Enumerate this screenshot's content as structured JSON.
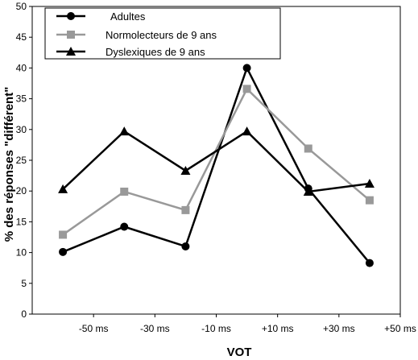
{
  "chart_data": {
    "type": "line",
    "title": "",
    "xlabel": "VOT",
    "ylabel": "% des réponses \"différent\"",
    "x_tick_labels": [
      "-50 ms",
      "-30 ms",
      "-10 ms",
      "+10 ms",
      "+30 ms",
      "+50 ms"
    ],
    "x_ticks": [
      -50,
      -30,
      -10,
      10,
      30,
      50
    ],
    "x": [
      -60,
      -40,
      -20,
      0,
      20,
      40
    ],
    "xlim": [
      -70,
      50
    ],
    "ylim": [
      0,
      50
    ],
    "y_ticks": [
      0,
      5,
      10,
      15,
      20,
      25,
      30,
      35,
      40,
      45,
      50
    ],
    "grid": false,
    "legend_position": "top-left",
    "series": [
      {
        "name": "Adultes",
        "values": [
          10.1,
          14.2,
          11.0,
          40.0,
          20.4,
          8.3
        ],
        "color": "#000000",
        "marker": "circle"
      },
      {
        "name": "Normolecteurs de 9 ans",
        "values": [
          12.9,
          19.9,
          16.9,
          36.6,
          26.9,
          18.5
        ],
        "color": "#999999",
        "marker": "square"
      },
      {
        "name": "Dyslexiques de 9 ans",
        "values": [
          20.3,
          29.7,
          23.3,
          29.7,
          19.9,
          21.2
        ],
        "color": "#000000",
        "marker": "triangle"
      }
    ]
  }
}
